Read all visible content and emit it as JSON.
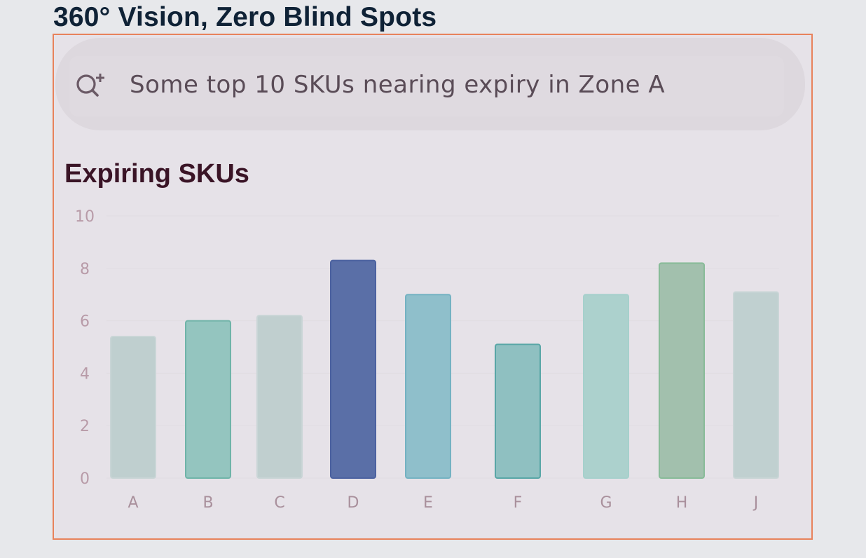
{
  "page": {
    "headline": "360° Vision, Zero Blind Spots"
  },
  "search": {
    "icon": "search-plus-icon",
    "query": "Some top 10 SKUs nearing expiry in Zone A"
  },
  "chart_data": {
    "type": "bar",
    "title": "Expiring SKUs",
    "xlabel": "",
    "ylabel": "",
    "ylim": [
      0,
      10
    ],
    "yticks": [
      0,
      2,
      4,
      6,
      8,
      10
    ],
    "grid": true,
    "categories": [
      "A",
      "B",
      "C",
      "D",
      "E",
      "F",
      "G",
      "H",
      "J"
    ],
    "values": [
      5.4,
      6.0,
      6.2,
      8.3,
      7.0,
      5.1,
      7.0,
      8.2,
      7.1
    ],
    "colors": [
      "#bfcfcf",
      "#94c5bf",
      "#c0cfcf",
      "#5a6fa7",
      "#8fbfcb",
      "#8fc0c1",
      "#acd1cd",
      "#a2c0ad",
      "#c0d0d0"
    ],
    "bar_borders": [
      "#c9d5d6",
      "#6fb4a8",
      "#c9d5d6",
      "#4c62a0",
      "#74b2c2",
      "#58a6a6",
      "#a6d0cc",
      "#88bb98",
      "#c9d5d6"
    ]
  }
}
